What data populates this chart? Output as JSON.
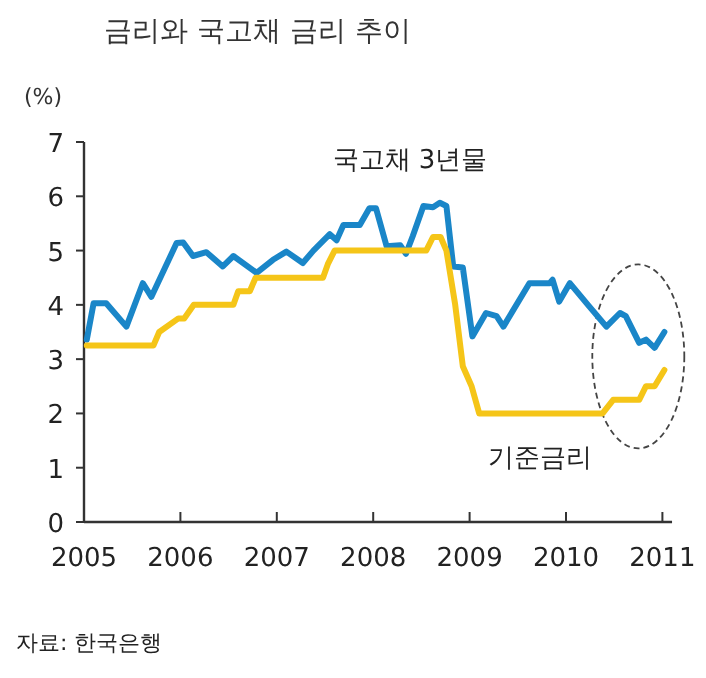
{
  "chart_data": {
    "type": "line",
    "title": "금리와 국고채 금리 추이",
    "ylabel": "(%)",
    "xlim": [
      2005,
      2011.1
    ],
    "xticks": [
      2005,
      2006,
      2007,
      2008,
      2009,
      2010,
      2011
    ],
    "ylim": [
      0,
      7
    ],
    "yticks": [
      0,
      1,
      2,
      3,
      4,
      5,
      6,
      7
    ],
    "grid": false,
    "legend": false,
    "marker": "none",
    "line_style": "solid",
    "annotations": [
      "자료: 한국은행"
    ],
    "series": [
      {
        "name": "국고채 3년물",
        "color": "#1a86c8",
        "x": [
          2005.03,
          2005.1,
          2005.23,
          2005.44,
          2005.61,
          2005.7,
          2005.96,
          2006.03,
          2006.13,
          2006.27,
          2006.44,
          2006.55,
          2006.79,
          2006.96,
          2007.1,
          2007.27,
          2007.38,
          2007.55,
          2007.62,
          2007.69,
          2007.86,
          2007.96,
          2008.03,
          2008.14,
          2008.28,
          2008.34,
          2008.41,
          2008.52,
          2008.62,
          2008.69,
          2008.76,
          2008.83,
          2008.93,
          2009.03,
          2009.17,
          2009.28,
          2009.35,
          2009.62,
          2009.83,
          2009.86,
          2009.93,
          2010.04,
          2010.24,
          2010.42,
          2010.56,
          2010.62,
          2010.76,
          2010.83,
          2010.92,
          2011.02
        ],
        "values": [
          3.36,
          4.03,
          4.03,
          3.6,
          4.4,
          4.15,
          5.14,
          5.15,
          4.9,
          4.97,
          4.71,
          4.9,
          4.59,
          4.83,
          4.98,
          4.77,
          5.0,
          5.3,
          5.19,
          5.47,
          5.47,
          5.78,
          5.78,
          5.08,
          5.1,
          4.94,
          5.27,
          5.82,
          5.8,
          5.88,
          5.82,
          4.71,
          4.69,
          3.42,
          3.85,
          3.79,
          3.6,
          4.4,
          4.4,
          4.46,
          4.06,
          4.4,
          3.97,
          3.6,
          3.85,
          3.79,
          3.3,
          3.36,
          3.21,
          3.5
        ]
      },
      {
        "name": "기준금리",
        "color": "#f5c518",
        "x": [
          2005.03,
          2005.72,
          2005.78,
          2005.98,
          2006.04,
          2006.14,
          2006.55,
          2006.6,
          2006.72,
          2006.78,
          2007.48,
          2007.53,
          2007.6,
          2008.55,
          2008.62,
          2008.7,
          2008.76,
          2008.85,
          2008.93,
          2009.02,
          2009.1,
          2010.38,
          2010.49,
          2010.76,
          2010.83,
          2010.92,
          2011.02
        ],
        "values": [
          3.25,
          3.25,
          3.5,
          3.75,
          3.75,
          4.0,
          4.0,
          4.25,
          4.25,
          4.5,
          4.5,
          4.75,
          5.0,
          5.0,
          5.25,
          5.25,
          5.0,
          4.0,
          2.87,
          2.5,
          2.0,
          2.0,
          2.25,
          2.25,
          2.5,
          2.5,
          2.8
        ]
      }
    ]
  }
}
